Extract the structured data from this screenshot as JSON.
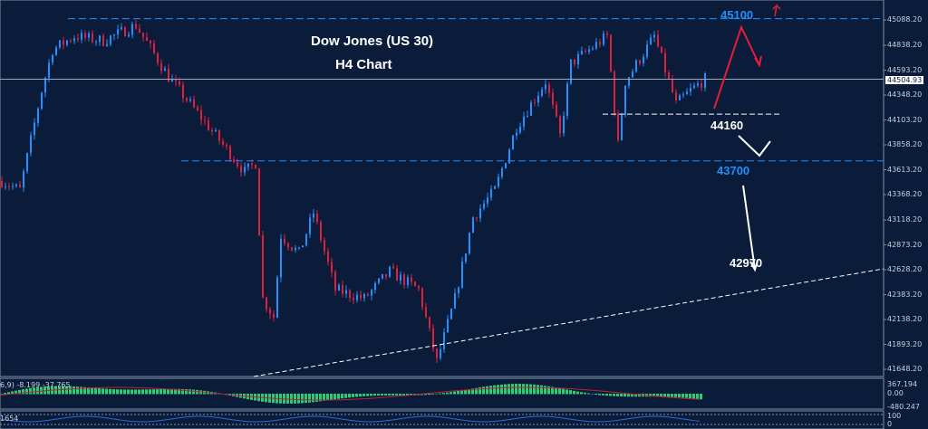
{
  "chart_data": {
    "type": "candlestick",
    "title": "Dow Jones (US 30)",
    "subtitle": "H4 Chart",
    "y_axis_ticks": [
      45088.2,
      44838.2,
      44593.2,
      44348.2,
      44103.2,
      43858.2,
      43613.2,
      43368.2,
      43118.2,
      42873.2,
      42628.2,
      42383.2,
      42138.2,
      41893.2,
      41648.2
    ],
    "ylim": [
      41560,
      45250
    ],
    "current_price": "44504.93",
    "price_path": [
      [
        0,
        43502
      ],
      [
        5,
        43413
      ],
      [
        11,
        44393
      ],
      [
        14,
        44794
      ],
      [
        20,
        44928
      ],
      [
        28,
        44883
      ],
      [
        37,
        45035
      ],
      [
        46,
        44527
      ],
      [
        57,
        44037
      ],
      [
        67,
        43591
      ],
      [
        70,
        43680
      ],
      [
        72,
        42343
      ],
      [
        75,
        42165
      ],
      [
        77,
        42967
      ],
      [
        82,
        42789
      ],
      [
        86,
        43190
      ],
      [
        92,
        42432
      ],
      [
        100,
        42343
      ],
      [
        107,
        42611
      ],
      [
        115,
        42432
      ],
      [
        120,
        41720
      ],
      [
        125,
        42343
      ],
      [
        130,
        43145
      ],
      [
        136,
        43413
      ],
      [
        142,
        44037
      ],
      [
        150,
        44482
      ],
      [
        154,
        43948
      ],
      [
        157,
        44660
      ],
      [
        167,
        44928
      ],
      [
        170,
        43859
      ],
      [
        172,
        44482
      ],
      [
        180,
        44928
      ],
      [
        186,
        44259
      ],
      [
        190,
        44393
      ],
      [
        194,
        44505
      ]
    ],
    "levels": [
      {
        "label": "45100",
        "price": 45100,
        "color": "#1e90ff"
      },
      {
        "label": "44160",
        "price": 44160,
        "color": "#ffffff"
      },
      {
        "label": "43700",
        "price": 43700,
        "color": "#1e90ff"
      },
      {
        "label": "42970",
        "price": 42970,
        "color": "#ffffff"
      }
    ],
    "colors": {
      "bull": "#1e90ff",
      "bear": "#e0203a",
      "background": "#0a1c3a",
      "macd_hist": "#2ecc71",
      "macd_signal": "#c0203a"
    },
    "macd": {
      "label": "6,9) -8.199 -37.765",
      "axis": [
        "367.194",
        "0.00",
        "-480.247"
      ]
    },
    "lower_indicator": {
      "label": "1654",
      "axis": [
        "100",
        "0"
      ]
    }
  }
}
